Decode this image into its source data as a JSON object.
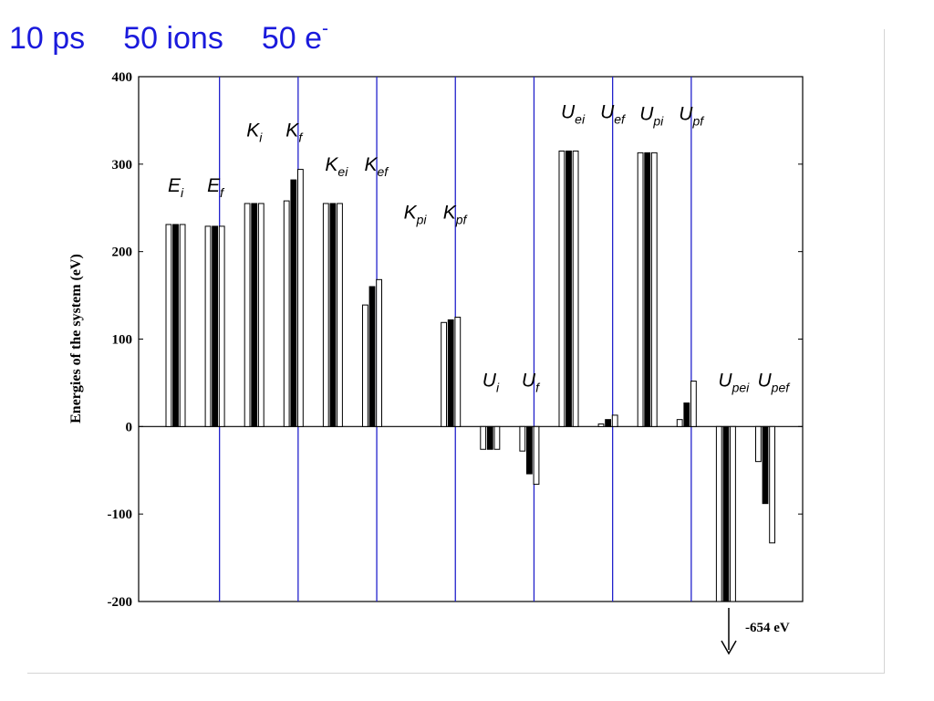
{
  "title": {
    "part1": "10 ps",
    "part2": "50 ions",
    "part3_base": "50 e",
    "part3_sup": "-"
  },
  "colors": {
    "title": "#1a1adc",
    "divider": "#2222cc",
    "axis": "#000000",
    "bar_fill_light": "#ffffff",
    "bar_fill_dark": "#000000"
  },
  "chart_data": {
    "type": "bar",
    "ylabel": "Energies of the system  (eV)",
    "xlabel": "",
    "ylim": [
      -200,
      400
    ],
    "yticks": [
      "400",
      "300",
      "200",
      "100",
      "0",
      "-100",
      "-200"
    ],
    "grid": false,
    "divider_after_groups": [
      2,
      4,
      6,
      8,
      10,
      12,
      14
    ],
    "groups": [
      {
        "label_main": "E",
        "label_sub": "i",
        "values": [
          231,
          231,
          231
        ]
      },
      {
        "label_main": "E",
        "label_sub": "f",
        "values": [
          229,
          229,
          229
        ]
      },
      {
        "label_main": "K",
        "label_sub": "i",
        "values": [
          255,
          255,
          255
        ]
      },
      {
        "label_main": "K",
        "label_sub": "f",
        "values": [
          258,
          282,
          294
        ]
      },
      {
        "label_main": "K",
        "label_sub": "ei",
        "values": [
          255,
          255,
          255
        ]
      },
      {
        "label_main": "K",
        "label_sub": "ef",
        "values": [
          139,
          160,
          168
        ]
      },
      {
        "label_main": "K",
        "label_sub": "pi",
        "values": []
      },
      {
        "label_main": "K",
        "label_sub": "pf",
        "values": [
          119,
          122,
          125
        ]
      },
      {
        "label_main": "U",
        "label_sub": "i",
        "values": [
          -26,
          -26,
          -26
        ]
      },
      {
        "label_main": "U",
        "label_sub": "f",
        "values": [
          -28,
          -54,
          -66
        ]
      },
      {
        "label_main": "U",
        "label_sub": "ei",
        "values": [
          315,
          315,
          315
        ]
      },
      {
        "label_main": "U",
        "label_sub": "ef",
        "values": [
          3,
          8,
          13
        ]
      },
      {
        "label_main": "U",
        "label_sub": "pi",
        "values": [
          313,
          313,
          313
        ]
      },
      {
        "label_main": "U",
        "label_sub": "pf",
        "values": [
          8,
          27,
          52
        ]
      },
      {
        "label_main": "U",
        "label_sub": "pei",
        "values": [
          -654,
          -654,
          -654
        ]
      },
      {
        "label_main": "U",
        "label_sub": "pef",
        "values": [
          -40,
          -88,
          -133
        ]
      }
    ],
    "annotation": {
      "text": "-654 eV",
      "arrow": "down"
    }
  }
}
